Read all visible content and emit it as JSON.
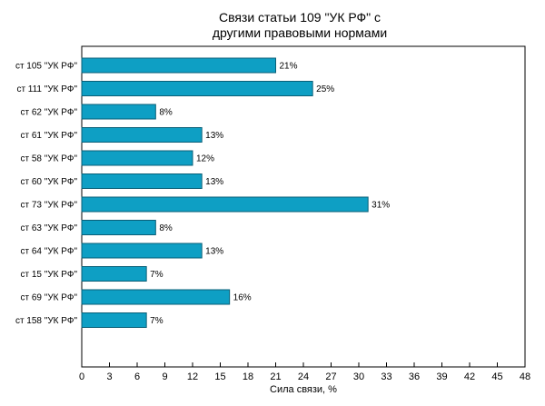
{
  "chart_data": {
    "type": "bar",
    "orientation": "horizontal",
    "title": [
      "Связи статьи 109 \"УК РФ\" с",
      "другими правовыми нормами"
    ],
    "xlabel": "Сила связи, %",
    "ylabel": "",
    "xlim": [
      0,
      48
    ],
    "x_ticks": [
      0,
      3,
      6,
      9,
      12,
      15,
      18,
      21,
      24,
      27,
      30,
      33,
      36,
      39,
      42,
      45,
      48
    ],
    "grid": false,
    "legend": "none",
    "bar_color": "#0e9fc4",
    "bar_edge_color": "#0a5f77",
    "categories": [
      "ст 105 \"УК РФ\"",
      "ст 111 \"УК РФ\"",
      "ст 62 \"УК РФ\"",
      "ст 61 \"УК РФ\"",
      "ст 58 \"УК РФ\"",
      "ст 60 \"УК РФ\"",
      "ст 73 \"УК РФ\"",
      "ст 63 \"УК РФ\"",
      "ст 64 \"УК РФ\"",
      "ст 15 \"УК РФ\"",
      "ст 69 \"УК РФ\"",
      "ст 158 \"УК РФ\""
    ],
    "values": [
      21,
      25,
      8,
      13,
      12,
      13,
      31,
      8,
      13,
      7,
      16,
      7
    ],
    "value_labels": [
      "21%",
      "25%",
      "8%",
      "13%",
      "12%",
      "13%",
      "31%",
      "8%",
      "13%",
      "7%",
      "16%",
      "7%"
    ]
  }
}
